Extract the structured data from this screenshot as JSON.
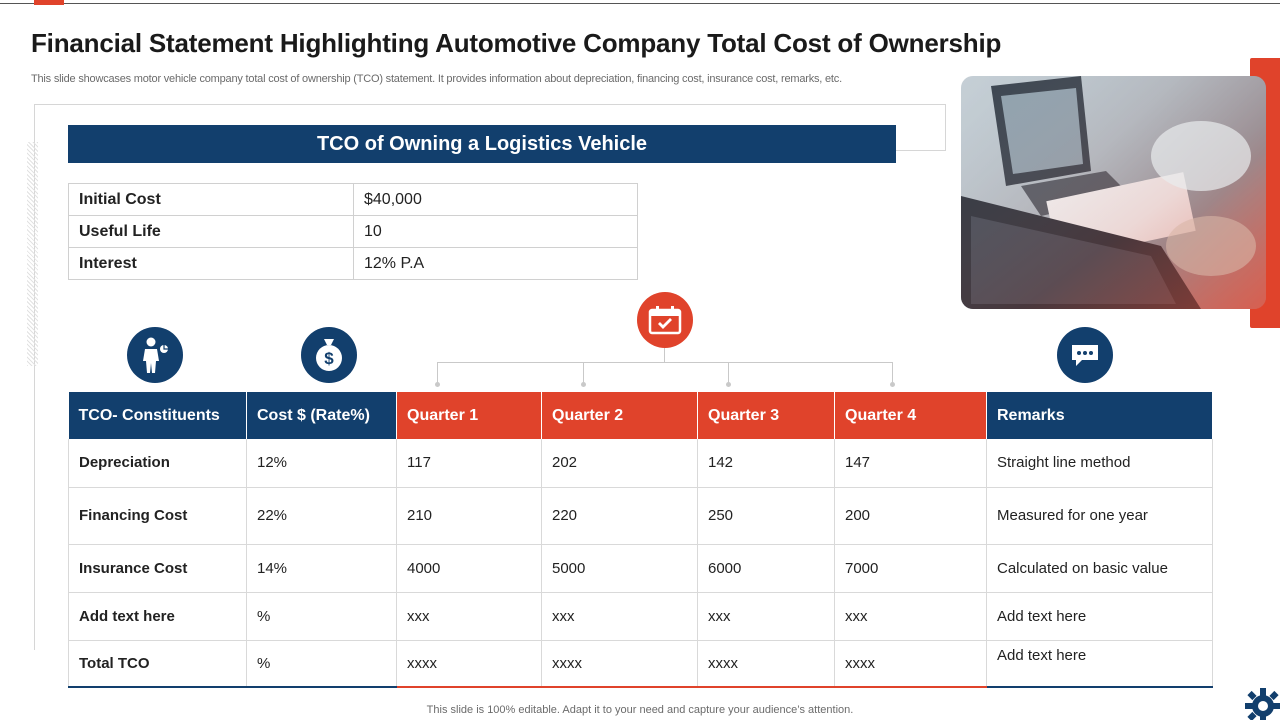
{
  "slide": {
    "title": "Financial Statement Highlighting Automotive Company Total Cost of Ownership",
    "subtitle": "This slide showcases motor vehicle company total cost of ownership (TCO) statement. It provides information about depreciation, financing cost, insurance cost, remarks, etc.",
    "footer": "This slide is 100% editable.  Adapt it to your need and capture your audience’s attention."
  },
  "banner": {
    "title": "TCO of Owning  a Logistics Vehicle"
  },
  "info": [
    {
      "label": "Initial Cost",
      "value": "$40,000"
    },
    {
      "label": "Useful Life",
      "value": "10"
    },
    {
      "label": "Interest",
      "value": "12% P.A"
    }
  ],
  "table": {
    "headers": [
      "TCO- Constituents",
      "Cost  $ (Rate%)",
      "Quarter 1",
      "Quarter 2",
      "Quarter 3",
      "Quarter 4",
      "Remarks"
    ],
    "rows": [
      [
        "Depreciation",
        "12%",
        "117",
        "202",
        "142",
        "147",
        "Straight line method"
      ],
      [
        "Financing Cost",
        "22%",
        "210",
        "220",
        "250",
        "200",
        "Measured for one year"
      ],
      [
        "Insurance Cost",
        "14%",
        "4000",
        "5000",
        "6000",
        "7000",
        "Calculated on basic value"
      ],
      [
        "Add  text here",
        "%",
        "xxx",
        "xxx",
        "xxx",
        "xxx",
        "Add text here"
      ],
      [
        "Total TCO",
        "%",
        "xxxx",
        "xxxx",
        "xxxx",
        "xxxx",
        "Add text here"
      ]
    ]
  },
  "icons": {
    "constituents": "businessman-icon",
    "cost": "money-bag-icon",
    "quarters": "calendar-check-icon",
    "remarks": "chat-bubble-icon",
    "photo": "laptop-desk-photo",
    "brand": "gear-icon"
  },
  "colors": {
    "navy": "#123f6d",
    "red": "#e0432b"
  }
}
